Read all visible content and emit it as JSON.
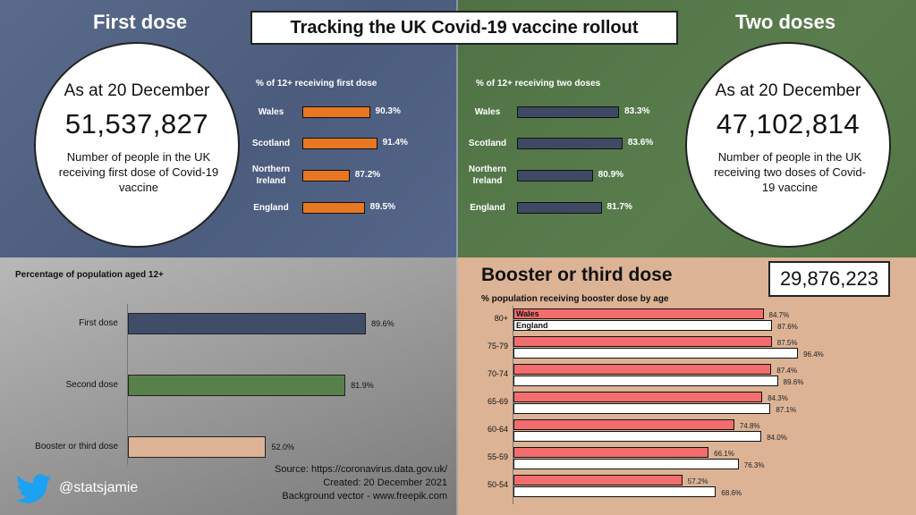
{
  "main_title": "Tracking the UK Covid-19 vaccine rollout",
  "first_dose": {
    "title": "First dose",
    "as_at": "As at 20 December",
    "number": "51,537,827",
    "description": "Number of people in the UK receiving first dose of Covid-19 vaccine"
  },
  "two_doses": {
    "title": "Two doses",
    "as_at": "As at 20 December",
    "number": "47,102,814",
    "description": "Number of people in the UK receiving two doses of Covid-19 vaccine"
  },
  "booster": {
    "title": "Booster or third dose",
    "number": "29,876,223"
  },
  "source": {
    "line1": "Source: https://coronavirus.data.gov.uk/",
    "line2": "Created: 20 December 2021",
    "line3": "Background vector - www.freepik.com"
  },
  "twitter_handle": "@statsjamie",
  "colors": {
    "first": "#e87722",
    "second": "#3e4a63",
    "bl_first": "#3f4d68",
    "bl_second": "#58804a",
    "bl_booster": "#dcb395",
    "wales": "#f26d6d",
    "england": "#ffffff"
  },
  "chart_data": [
    {
      "type": "bar",
      "id": "first",
      "title": "% of 12+ receiving first dose",
      "categories": [
        "Wales",
        "Scotland",
        "Northern Ireland",
        "England"
      ],
      "values": [
        90.3,
        91.4,
        87.2,
        89.5
      ],
      "labels": [
        "90.3%",
        "91.4%",
        "87.2%",
        "89.5%"
      ],
      "xlim": [
        80,
        95
      ]
    },
    {
      "type": "bar",
      "id": "second",
      "title": "% of 12+ receiving two doses",
      "categories": [
        "Wales",
        "Scotland",
        "Northern Ireland",
        "England"
      ],
      "values": [
        83.3,
        83.6,
        80.9,
        81.7
      ],
      "labels": [
        "83.3%",
        "83.6%",
        "80.9%",
        "81.7%"
      ],
      "xlim": [
        74,
        85
      ]
    },
    {
      "type": "bar",
      "id": "population",
      "title": "Percentage of population aged 12+",
      "categories": [
        "First dose",
        "Second dose",
        "Booster or third dose"
      ],
      "values": [
        89.6,
        81.9,
        52.0
      ],
      "labels": [
        "89.6%",
        "81.9%",
        "52.0%"
      ],
      "xlim": [
        0,
        100
      ]
    },
    {
      "type": "bar",
      "id": "booster",
      "title": "% population receiving booster dose by age",
      "categories": [
        "80+",
        "75-79",
        "70-74",
        "65-69",
        "60-64",
        "55-59",
        "50-54"
      ],
      "series": [
        {
          "name": "Wales",
          "values": [
            84.7,
            87.5,
            87.4,
            84.3,
            74.8,
            66.1,
            57.2
          ],
          "labels": [
            "84.7%",
            "87.5%",
            "87.4%",
            "84.3%",
            "74.8%",
            "66.1%",
            "57.2%"
          ]
        },
        {
          "name": "England",
          "values": [
            87.6,
            96.4,
            89.6,
            87.1,
            84.0,
            76.3,
            68.6
          ],
          "labels": [
            "87.6%",
            "96.4%",
            "89.6%",
            "87.1%",
            "84.0%",
            "76.3%",
            "68.6%"
          ]
        }
      ],
      "xlim": [
        0,
        100
      ]
    }
  ]
}
